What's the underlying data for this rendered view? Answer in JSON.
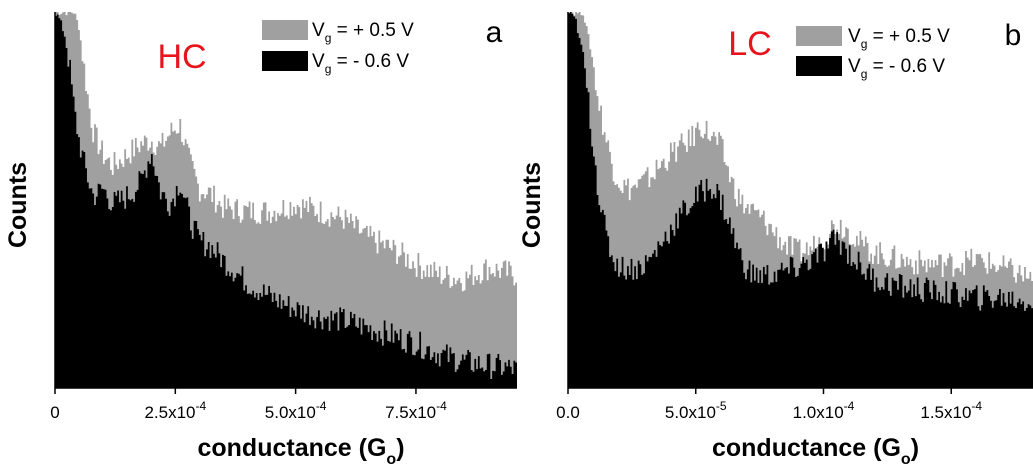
{
  "figure": {
    "colors": {
      "gate_positive": "#a0a0a0",
      "gate_negative": "#000000",
      "panel_tag": "#e8141b"
    }
  },
  "chart_data": [
    {
      "type": "area",
      "panel_letter": "a",
      "panel_tag": "HC",
      "xlabel": "conductance (G",
      "xlabel_sub": "o",
      "xlabel_close": ")",
      "ylabel": "Counts",
      "xlim": [
        0,
        0.00096
      ],
      "ylim": [
        0,
        100
      ],
      "tick_values": [
        0,
        0.00025,
        0.0005,
        0.00075
      ],
      "tick_labels": [
        {
          "base": "0",
          "exp": ""
        },
        {
          "base": "2.5x10",
          "exp": "-4"
        },
        {
          "base": "5.0x10",
          "exp": "-4"
        },
        {
          "base": "7.5x10",
          "exp": "-4"
        }
      ],
      "legend_position": "top-right",
      "series": [
        {
          "name": "V_g = + 0.5 V",
          "legend_main": "V",
          "legend_sub": "g",
          "legend_rest": " = + 0.5 V",
          "color": "#a0a0a0",
          "x": [
            0,
            1e-05,
            2e-05,
            3e-05,
            4e-05,
            5e-05,
            6e-05,
            7e-05,
            8e-05,
            0.0001,
            0.00012,
            0.00014,
            0.00016,
            0.00018,
            0.0002,
            0.00022,
            0.00024,
            0.00026,
            0.00028,
            0.0003,
            0.00032,
            0.00035,
            0.0004,
            0.00045,
            0.0005,
            0.00055,
            0.0006,
            0.00065,
            0.0007,
            0.00075,
            0.0008,
            0.00085,
            0.0009,
            0.00096
          ],
          "y": [
            100,
            100,
            100,
            100,
            100,
            96,
            86,
            76,
            68,
            62,
            59,
            61,
            63,
            65,
            66,
            64,
            68,
            70,
            60,
            53,
            52,
            48,
            47,
            47,
            49,
            47,
            45,
            40,
            37,
            33,
            30,
            29,
            32,
            30
          ]
        },
        {
          "name": "V_g = - 0.6 V",
          "legend_main": "V",
          "legend_sub": "g",
          "legend_rest": " = - 0.6 V",
          "color": "#000000",
          "x": [
            0,
            1e-05,
            2e-05,
            3e-05,
            4e-05,
            5e-05,
            6e-05,
            7e-05,
            8e-05,
            0.0001,
            0.00012,
            0.00014,
            0.00016,
            0.00018,
            0.0002,
            0.00022,
            0.00024,
            0.00026,
            0.00028,
            0.0003,
            0.00032,
            0.00035,
            0.0004,
            0.00045,
            0.0005,
            0.00055,
            0.0006,
            0.00065,
            0.0007,
            0.00075,
            0.0008,
            0.00085,
            0.0009,
            0.00096
          ],
          "y": [
            100,
            98,
            94,
            86,
            74,
            66,
            60,
            55,
            51,
            53,
            49,
            50,
            52,
            55,
            63,
            52,
            49,
            55,
            45,
            39,
            38,
            34,
            28,
            24,
            21,
            19,
            18,
            16,
            14,
            12,
            9,
            7,
            6,
            5
          ]
        }
      ]
    },
    {
      "type": "area",
      "panel_letter": "b",
      "panel_tag": "LC",
      "xlabel": "conductance (G",
      "xlabel_sub": "o",
      "xlabel_close": ")",
      "ylabel": "Counts",
      "xlim": [
        0,
        0.000182
      ],
      "ylim": [
        0,
        100
      ],
      "tick_values": [
        0,
        5e-05,
        0.0001,
        0.00015
      ],
      "tick_labels": [
        {
          "base": "0.0",
          "exp": ""
        },
        {
          "base": "5.0x10",
          "exp": "-5"
        },
        {
          "base": "1.0x10",
          "exp": "-4"
        },
        {
          "base": "1.5x10",
          "exp": "-4"
        }
      ],
      "legend_position": "top-right",
      "series": [
        {
          "name": "V_g = + 0.5 V",
          "legend_main": "V",
          "legend_sub": "g",
          "legend_rest": " = + 0.5 V",
          "color": "#a0a0a0",
          "x": [
            0,
            3e-06,
            6e-06,
            9e-06,
            1.2e-05,
            1.5e-05,
            1.8e-05,
            2.1e-05,
            2.4e-05,
            2.8e-05,
            3.2e-05,
            3.6e-05,
            4e-05,
            4.4e-05,
            4.8e-05,
            5.2e-05,
            5.6e-05,
            6e-05,
            6.4e-05,
            6.8e-05,
            7.2e-05,
            7.6e-05,
            8e-05,
            8.5e-05,
            9e-05,
            9.5e-05,
            0.0001,
            0.000105,
            0.00011,
            0.000115,
            0.00012,
            0.00013,
            0.00014,
            0.00015,
            0.00016,
            0.00017,
            0.000182
          ],
          "y": [
            100,
            100,
            100,
            90,
            76,
            66,
            58,
            54,
            53,
            54,
            56,
            59,
            62,
            64,
            66,
            70,
            67,
            64,
            55,
            49,
            47,
            45,
            42,
            38,
            36,
            37,
            40,
            44,
            42,
            38,
            36,
            34,
            33,
            33,
            34,
            32,
            29
          ]
        },
        {
          "name": "V_g = - 0.6 V",
          "legend_main": "V",
          "legend_sub": "g",
          "legend_rest": " = - 0.6 V",
          "color": "#000000",
          "x": [
            0,
            3e-06,
            6e-06,
            9e-06,
            1.2e-05,
            1.5e-05,
            1.8e-05,
            2.1e-05,
            2.4e-05,
            2.8e-05,
            3.2e-05,
            3.6e-05,
            4e-05,
            4.4e-05,
            4.8e-05,
            5.2e-05,
            5.6e-05,
            6e-05,
            6.4e-05,
            6.8e-05,
            7.2e-05,
            7.6e-05,
            8e-05,
            8.5e-05,
            9e-05,
            9.5e-05,
            0.0001,
            0.000105,
            0.00011,
            0.000115,
            0.00012,
            0.00013,
            0.00014,
            0.00015,
            0.00016,
            0.00017,
            0.000182
          ],
          "y": [
            100,
            98,
            88,
            70,
            52,
            40,
            34,
            32,
            32,
            32,
            34,
            38,
            42,
            46,
            49,
            52,
            54,
            50,
            42,
            34,
            30,
            30,
            30,
            31,
            32,
            34,
            36,
            40,
            36,
            32,
            29,
            27,
            26,
            25,
            24,
            24,
            23
          ]
        }
      ]
    }
  ]
}
